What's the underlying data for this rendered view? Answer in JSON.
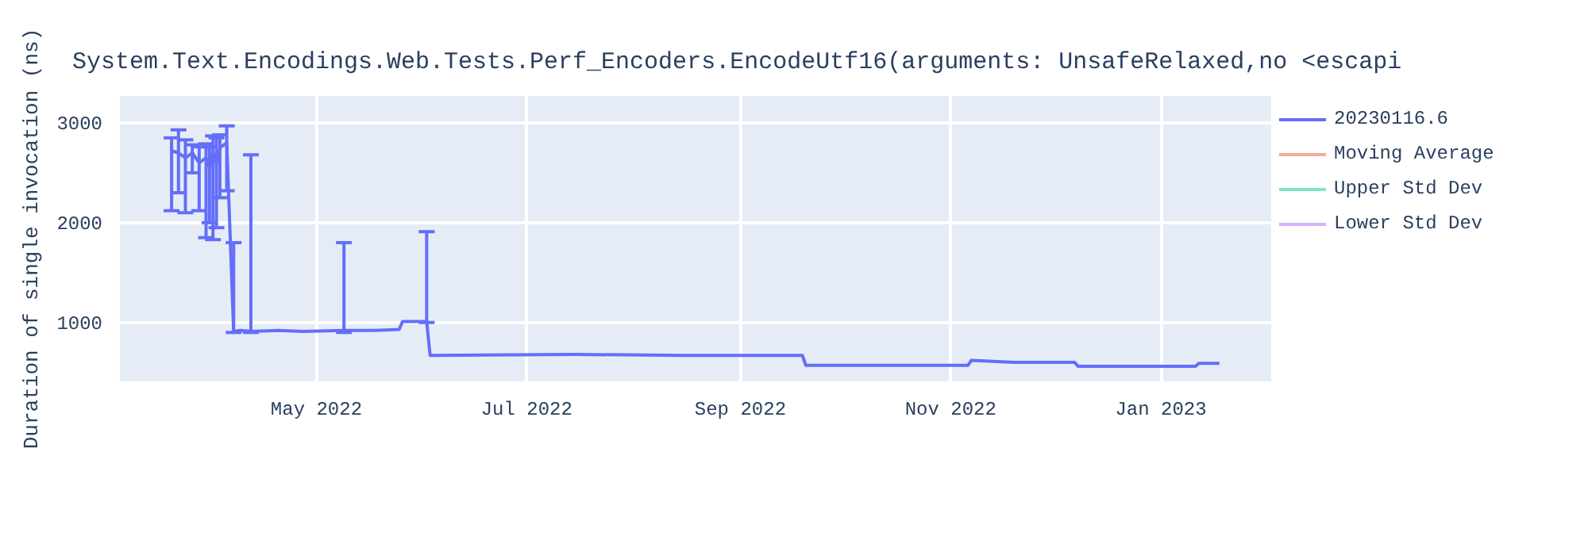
{
  "chart_data": {
    "type": "line",
    "title": "System.Text.Encodings.Web.Tests.Perf_Encoders.EncodeUtf16(arguments: UnsafeRelaxed,no <escapi",
    "ylabel": "Duration of single invocation (ns)",
    "xlim": [
      "2022-03-05",
      "2023-02-02"
    ],
    "xticks": [
      {
        "value": "2022-05-01",
        "label": "May 2022"
      },
      {
        "value": "2022-07-01",
        "label": "Jul 2022"
      },
      {
        "value": "2022-09-01",
        "label": "Sep 2022"
      },
      {
        "value": "2022-11-01",
        "label": "Nov 2022"
      },
      {
        "value": "2023-01-01",
        "label": "Jan 2023"
      }
    ],
    "ylim": [
      410,
      3270
    ],
    "yticks": [
      1000,
      2000,
      3000
    ],
    "grid": true,
    "legend": "right",
    "series": [
      {
        "name": "20230116.6",
        "color": "#636efa",
        "x": [
          "2022-03-20",
          "2022-03-22",
          "2022-03-24",
          "2022-03-26",
          "2022-03-28",
          "2022-03-30",
          "2022-03-31",
          "2022-04-01",
          "2022-04-02",
          "2022-04-03",
          "2022-04-05",
          "2022-04-07",
          "2022-04-09",
          "2022-04-12",
          "2022-04-20",
          "2022-04-27",
          "2022-05-09",
          "2022-05-18",
          "2022-05-25",
          "2022-05-26",
          "2022-06-02",
          "2022-06-03",
          "2022-07-15",
          "2022-08-15",
          "2022-09-19",
          "2022-09-20",
          "2022-10-15",
          "2022-11-06",
          "2022-11-07",
          "2022-11-20",
          "2022-12-07",
          "2022-12-08",
          "2022-12-25",
          "2023-01-11",
          "2023-01-12",
          "2023-01-18"
        ],
        "values": [
          2720,
          2700,
          2650,
          2700,
          2600,
          2650,
          2550,
          2700,
          2600,
          2750,
          2800,
          910,
          920,
          910,
          920,
          910,
          920,
          920,
          930,
          1010,
          1010,
          670,
          680,
          670,
          670,
          570,
          570,
          570,
          620,
          600,
          600,
          560,
          560,
          560,
          590,
          590
        ],
        "errors": [
          [
            2120,
            2850
          ],
          [
            2300,
            2930
          ],
          [
            2100,
            2830
          ],
          [
            2500,
            2780
          ],
          [
            2120,
            2760
          ],
          [
            1850,
            2790
          ],
          [
            2000,
            2760
          ],
          [
            1830,
            2870
          ],
          [
            1950,
            2850
          ],
          [
            2250,
            2880
          ],
          [
            2320,
            2970
          ],
          [
            900,
            1800
          ],
          null,
          [
            900,
            2680
          ],
          null,
          null,
          [
            900,
            1800
          ],
          null,
          null,
          null,
          [
            1000,
            1910
          ],
          null,
          null,
          null,
          null,
          null,
          null,
          null,
          null,
          null,
          null,
          null,
          null,
          null,
          null,
          null
        ]
      },
      {
        "name": "Moving Average",
        "color": "#f7aa9d"
      },
      {
        "name": "Upper Std Dev",
        "color": "#7fe5ca"
      },
      {
        "name": "Lower Std Dev",
        "color": "#d5b1fc"
      }
    ]
  }
}
